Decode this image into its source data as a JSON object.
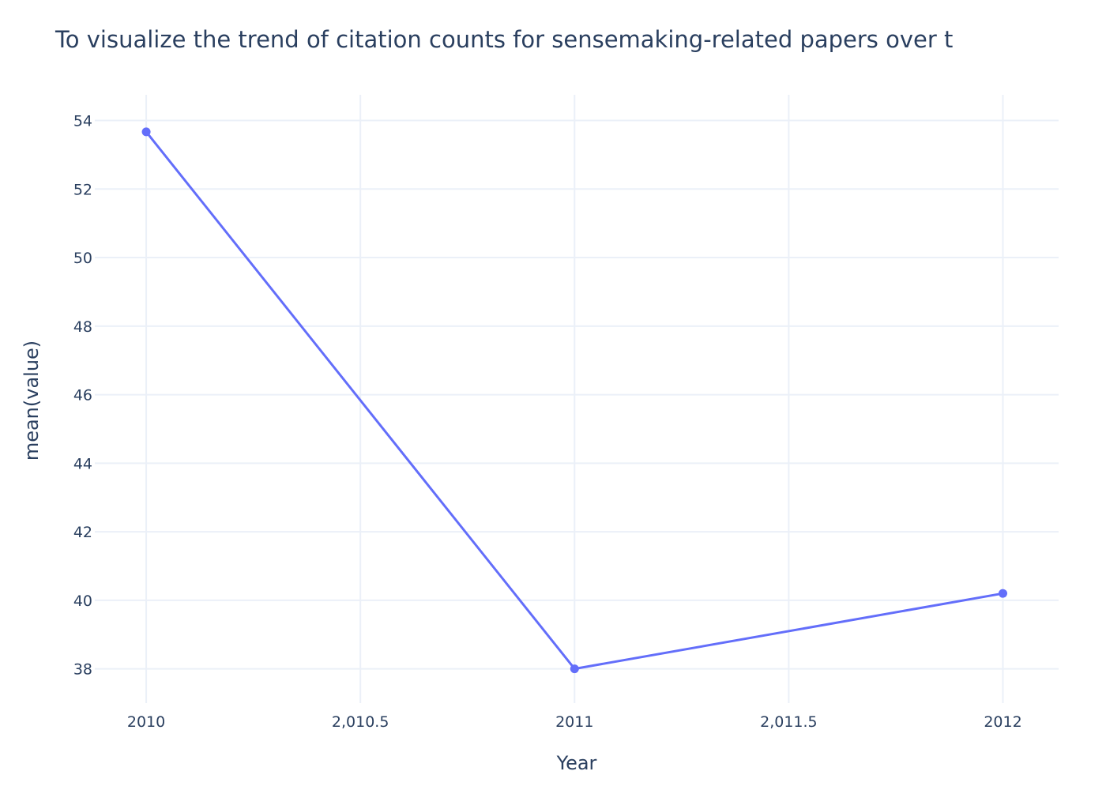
{
  "chart_data": {
    "type": "line",
    "title": "To visualize the trend of citation counts for sensemaking-related papers over t",
    "xlabel": "Year",
    "ylabel": "mean(value)",
    "x": [
      2010,
      2011,
      2012
    ],
    "series": [
      {
        "values": [
          53.67,
          38.0,
          40.2
        ]
      }
    ],
    "xlim": [
      2009.88,
      2012.13
    ],
    "ylim": [
      37.0,
      54.75
    ],
    "xticks": [
      2010,
      2010.5,
      2011,
      2011.5,
      2012
    ],
    "xtick_labels": [
      "2010",
      "2,010.5",
      "2011",
      "2,011.5",
      "2012"
    ],
    "yticks": [
      38,
      40,
      42,
      44,
      46,
      48,
      50,
      52,
      54
    ],
    "ytick_labels": [
      "38",
      "40",
      "42",
      "44",
      "46",
      "48",
      "50",
      "52",
      "54"
    ],
    "grid": true,
    "colors": {
      "line": "#636efa",
      "grid": "#ebf0f8",
      "text": "#2a3f5f"
    }
  }
}
